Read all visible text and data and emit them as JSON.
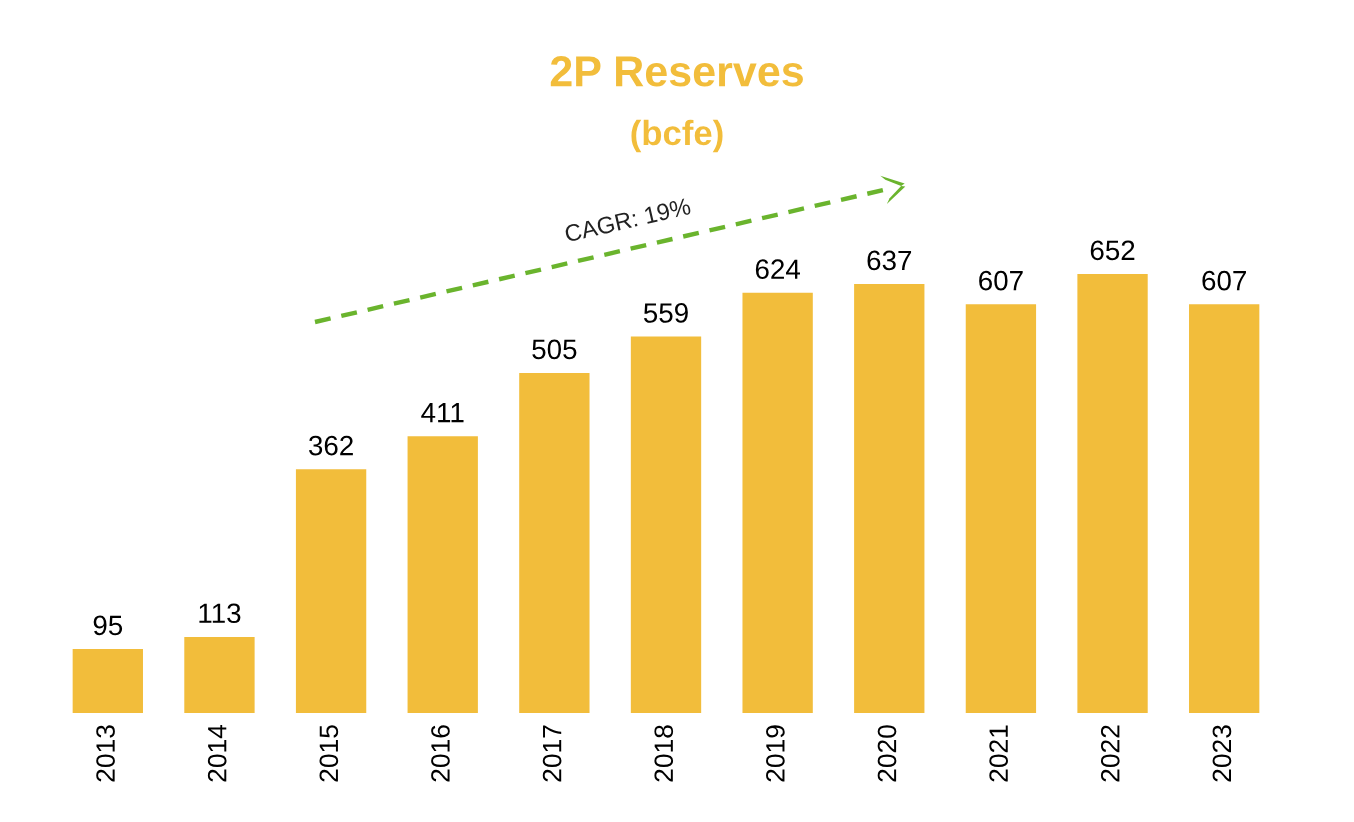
{
  "chart_data": {
    "type": "bar",
    "title": "2P Reserves",
    "subtitle": "(bcfe)",
    "categories": [
      "2013",
      "2014",
      "2015",
      "2016",
      "2017",
      "2018",
      "2019",
      "2020",
      "2021",
      "2022",
      "2023"
    ],
    "values": [
      95,
      113,
      362,
      411,
      505,
      559,
      624,
      637,
      607,
      652,
      607
    ],
    "color": "#f2bd3b",
    "data_labels": true,
    "tick_labels": "x",
    "grid": false,
    "legend": false,
    "annotations": [
      "CAGR: 19%"
    ]
  }
}
